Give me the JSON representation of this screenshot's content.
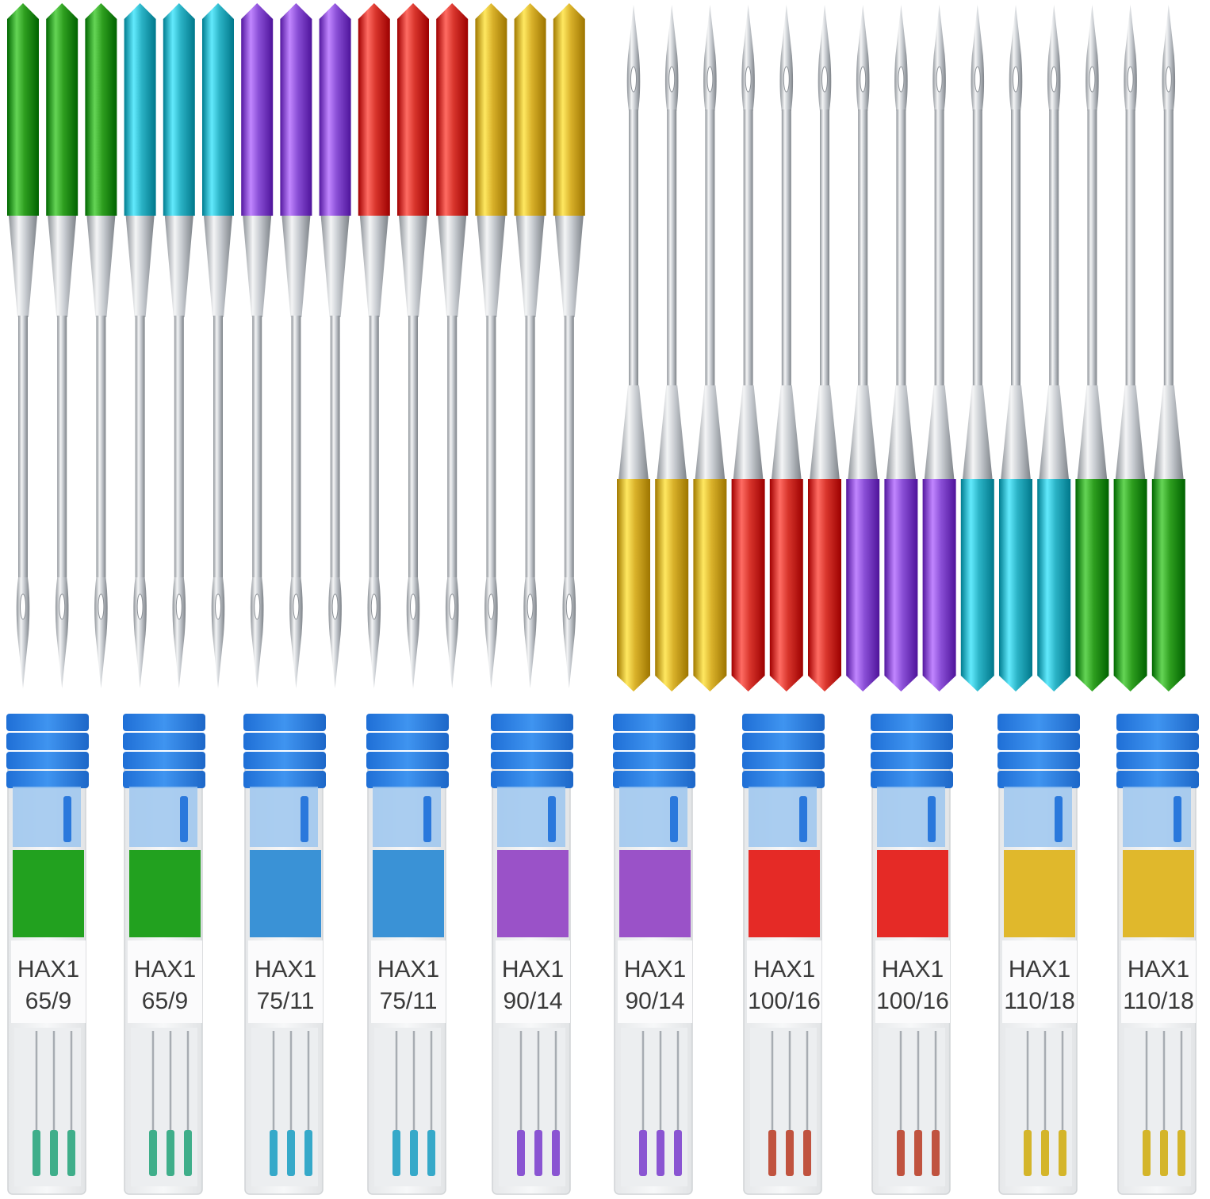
{
  "colors": {
    "green": "#2e9e1f",
    "teal": "#2bb3c6",
    "purple": "#8a4fd6",
    "red": "#d8352c",
    "gold": "#d9b12a",
    "box_blue": "#2f7fe0",
    "steel": "#c9cdd2"
  },
  "top_left_needles": [
    "green",
    "green",
    "green",
    "teal",
    "teal",
    "teal",
    "purple",
    "purple",
    "purple",
    "red",
    "red",
    "red",
    "gold",
    "gold",
    "gold"
  ],
  "top_right_needles": [
    "gold",
    "gold",
    "gold",
    "red",
    "red",
    "red",
    "purple",
    "purple",
    "purple",
    "teal",
    "teal",
    "teal",
    "green",
    "green",
    "green"
  ],
  "boxes": [
    {
      "model": "HAX1",
      "size": "65/9",
      "color": "green",
      "label_color": "#22a11f",
      "mini_color": "#3fae8a"
    },
    {
      "model": "HAX1",
      "size": "65/9",
      "color": "green",
      "label_color": "#22a11f",
      "mini_color": "#3fae8a"
    },
    {
      "model": "HAX1",
      "size": "75/11",
      "color": "teal",
      "label_color": "#3a92d6",
      "mini_color": "#36a9c9"
    },
    {
      "model": "HAX1",
      "size": "75/11",
      "color": "teal",
      "label_color": "#3a92d6",
      "mini_color": "#36a9c9"
    },
    {
      "model": "HAX1",
      "size": "90/14",
      "color": "purple",
      "label_color": "#9a52c8",
      "mini_color": "#8a55d2"
    },
    {
      "model": "HAX1",
      "size": "90/14",
      "color": "purple",
      "label_color": "#9a52c8",
      "mini_color": "#8a55d2"
    },
    {
      "model": "HAX1",
      "size": "100/16",
      "color": "red",
      "label_color": "#e52a26",
      "mini_color": "#c0533f"
    },
    {
      "model": "HAX1",
      "size": "100/16",
      "color": "red",
      "label_color": "#e52a26",
      "mini_color": "#c0533f"
    },
    {
      "model": "HAX1",
      "size": "110/18",
      "color": "gold",
      "label_color": "#e0b82c",
      "mini_color": "#d4b52a"
    },
    {
      "model": "HAX1",
      "size": "110/18",
      "color": "gold",
      "label_color": "#e0b82c",
      "mini_color": "#d4b52a"
    }
  ]
}
